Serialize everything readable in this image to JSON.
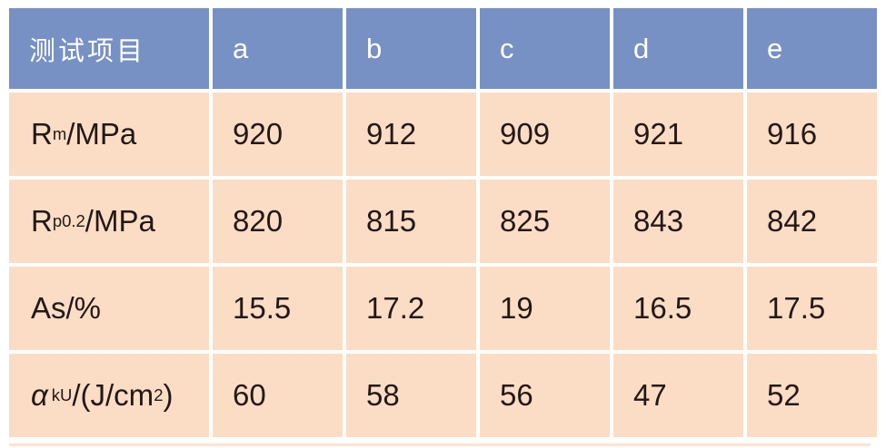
{
  "table": {
    "header": {
      "label": "测试项目",
      "columns": [
        "a",
        "b",
        "c",
        "d",
        "e"
      ]
    },
    "rows": [
      {
        "name": "tensile-strength",
        "label": [
          {
            "v": "R"
          },
          {
            "v": "m",
            "s": "sub"
          },
          {
            "v": "/MPa"
          }
        ],
        "values": [
          "920",
          "912",
          "909",
          "921",
          "916"
        ]
      },
      {
        "name": "yield-strength",
        "label": [
          {
            "v": "R"
          },
          {
            "v": "p0.2",
            "s": "sub"
          },
          {
            "v": "/MPa"
          }
        ],
        "values": [
          "820",
          "815",
          "825",
          "843",
          "842"
        ]
      },
      {
        "name": "elongation",
        "label": [
          {
            "v": "As/%"
          }
        ],
        "values": [
          "15.5",
          "17.2",
          "19",
          "16.5",
          "17.5"
        ]
      },
      {
        "name": "impact-toughness",
        "label": [
          {
            "v": "α",
            "s": "italic"
          },
          {
            "v": "kU",
            "s": "sub"
          },
          {
            "v": "/(J/cm"
          },
          {
            "v": "2",
            "s": "sup"
          },
          {
            "v": ")"
          }
        ],
        "values": [
          "60",
          "58",
          "56",
          "47",
          "52"
        ]
      }
    ]
  },
  "colors": {
    "header_bg": "#7791C5",
    "header_text": "#FFFFFF",
    "cell_bg": "#FBDDC5",
    "body_text": "#231815",
    "bottom_strip": "#FBE4D3"
  }
}
